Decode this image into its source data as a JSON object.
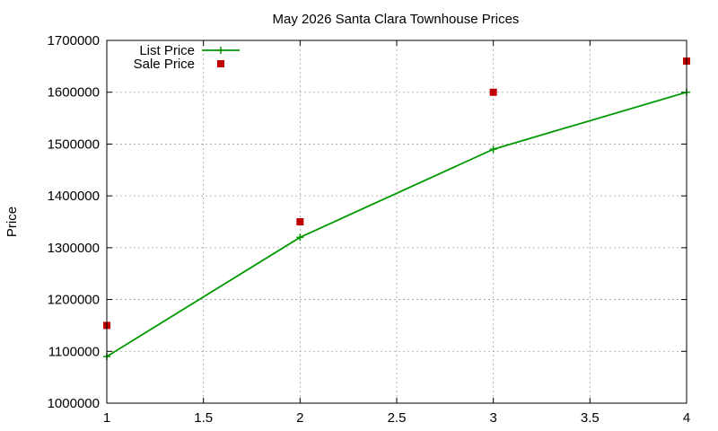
{
  "chart_data": {
    "type": "line",
    "title": "May 2026 Santa Clara Townhouse Prices",
    "xlabel": "",
    "ylabel": "Price",
    "xlim": [
      1,
      4
    ],
    "ylim": [
      1000000,
      1700000
    ],
    "x_ticks": [
      1,
      1.5,
      2,
      2.5,
      3,
      3.5,
      4
    ],
    "x_tick_labels": [
      "1",
      "1.5",
      "2",
      "2.5",
      "3",
      "3.5",
      "4"
    ],
    "y_ticks": [
      1000000,
      1100000,
      1200000,
      1300000,
      1400000,
      1500000,
      1600000,
      1700000
    ],
    "y_tick_labels": [
      "1000000",
      "1100000",
      "1200000",
      "1300000",
      "1400000",
      "1500000",
      "1600000",
      "1700000"
    ],
    "grid": true,
    "legend_position": "top-left",
    "series": [
      {
        "name": "List Price",
        "style": "linespoints",
        "marker": "plus",
        "color": "#009900",
        "x": [
          1,
          2,
          3,
          4
        ],
        "values": [
          1090000,
          1320000,
          1490000,
          1600000
        ]
      },
      {
        "name": "Sale Price",
        "style": "points",
        "marker": "square",
        "color": "#c00000",
        "x": [
          1,
          2,
          3,
          4
        ],
        "values": [
          1150000,
          1350000,
          1600000,
          1660000
        ]
      }
    ]
  }
}
